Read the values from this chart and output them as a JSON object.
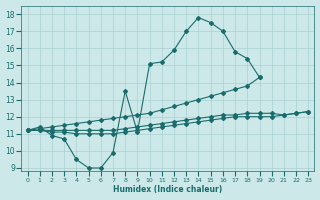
{
  "xlabel": "Humidex (Indice chaleur)",
  "xlim": [
    -0.5,
    23.5
  ],
  "ylim": [
    8.8,
    18.5
  ],
  "yticks": [
    9,
    10,
    11,
    12,
    13,
    14,
    15,
    16,
    17,
    18
  ],
  "xticks": [
    0,
    1,
    2,
    3,
    4,
    5,
    6,
    7,
    8,
    9,
    10,
    11,
    12,
    13,
    14,
    15,
    16,
    17,
    18,
    19,
    20,
    21,
    22,
    23
  ],
  "bg_color": "#cde8e8",
  "grid_color": "#aad0d0",
  "line_color": "#1a6b6b",
  "lines": [
    {
      "x": [
        0,
        1,
        2,
        3,
        4,
        5,
        6,
        7,
        8,
        9,
        10,
        11,
        12,
        13,
        14,
        15,
        16,
        17,
        18,
        19,
        20,
        21,
        22,
        23
      ],
      "y": [
        11.2,
        11.4,
        10.9,
        10.7,
        9.5,
        9.0,
        9.0,
        9.9,
        13.5,
        11.1,
        15.1,
        15.2,
        15.9,
        17.0,
        17.8,
        17.5,
        17.0,
        15.8,
        15.4,
        14.3,
        null,
        null,
        null,
        null
      ]
    },
    {
      "x": [
        0,
        1,
        2,
        3,
        4,
        5,
        6,
        7,
        8,
        9,
        10,
        11,
        12,
        13,
        14,
        15,
        16,
        17,
        18,
        19,
        20,
        21,
        22,
        23
      ],
      "y": [
        11.2,
        11.3,
        11.4,
        11.5,
        11.6,
        11.7,
        11.8,
        11.9,
        12.0,
        12.1,
        12.2,
        12.4,
        12.6,
        12.8,
        13.0,
        13.2,
        13.4,
        13.6,
        13.8,
        14.3,
        null,
        null,
        null,
        null
      ]
    },
    {
      "x": [
        0,
        1,
        2,
        3,
        4,
        5,
        6,
        7,
        8,
        9,
        10,
        11,
        12,
        13,
        14,
        15,
        16,
        17,
        18,
        19,
        20,
        21,
        22,
        23
      ],
      "y": [
        11.2,
        11.2,
        11.2,
        11.2,
        11.2,
        11.2,
        11.2,
        11.2,
        11.3,
        11.4,
        11.5,
        11.6,
        11.7,
        11.8,
        11.9,
        12.0,
        12.1,
        12.1,
        12.2,
        12.2,
        12.2,
        12.1,
        12.2,
        12.3
      ]
    },
    {
      "x": [
        0,
        1,
        2,
        3,
        4,
        5,
        6,
        7,
        8,
        9,
        10,
        11,
        12,
        13,
        14,
        15,
        16,
        17,
        18,
        19,
        20,
        21,
        22,
        23
      ],
      "y": [
        11.2,
        11.2,
        11.1,
        11.1,
        11.0,
        11.0,
        11.0,
        11.0,
        11.1,
        11.2,
        11.3,
        11.4,
        11.5,
        11.6,
        11.7,
        11.8,
        11.9,
        12.0,
        12.0,
        12.0,
        12.0,
        12.1,
        12.2,
        12.3
      ]
    }
  ]
}
